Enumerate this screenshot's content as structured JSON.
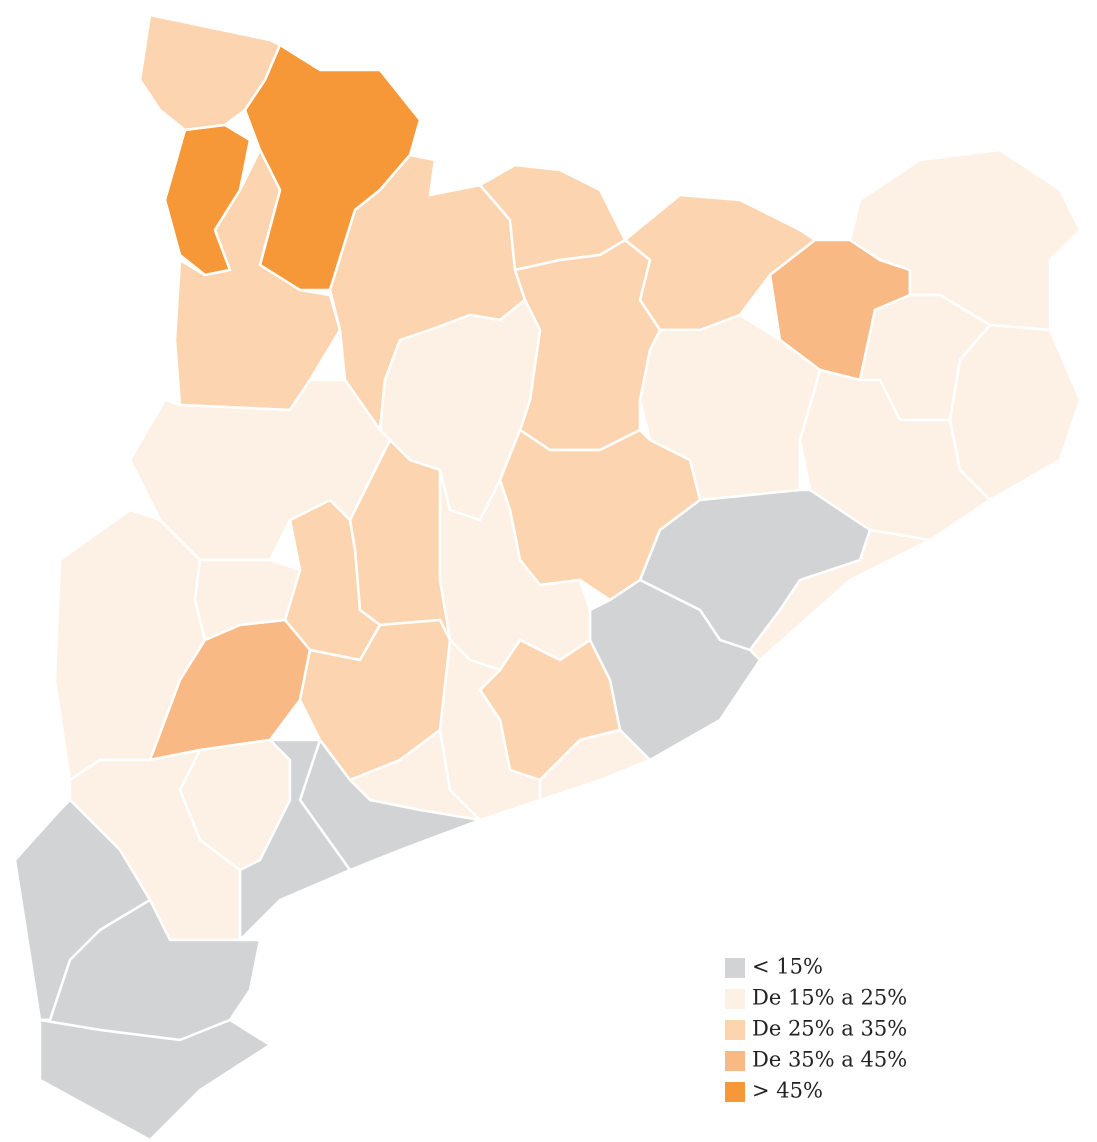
{
  "legend": [
    {
      "label": "< 15%",
      "color": "#d1d3d4"
    },
    {
      "label": "De 15% a 25%",
      "color": "#fdf0e4"
    },
    {
      "label": "De 25% a 35%",
      "color": "#fcd5b0"
    },
    {
      "label": "De 35% a 45%",
      "color": "#f9b985"
    },
    {
      "label": "> 45%",
      "color": "#f69738"
    }
  ]
}
